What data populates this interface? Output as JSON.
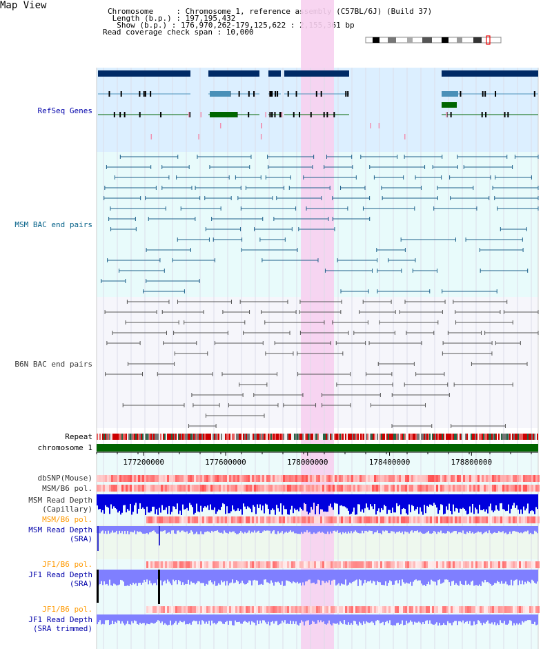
{
  "title": "Map View",
  "info": {
    "chromosome": "Chromosome     : Chromosome 1, reference assembly (C57BL/6J) (Build 37)",
    "length": " Length (b.p.) : 197,195,432",
    "show": "  Show (b.p.) : 176,970,262-179,125,622 : 2,155,361 bp",
    "span": "Read coverage check span : 10,000"
  },
  "tracks": {
    "refseq": "RefSeq Genes",
    "msm_bac": "MSM BAC end pairs",
    "b6n_bac": "B6N BAC end pairs",
    "repeat": "Repeat",
    "chromosome": "chromosome 1",
    "dbsnp": "dbSNP(Mouse)",
    "msm_b6_pol_1": "MSM/B6 pol.",
    "msm_depth_cap_1": "MSM Read Depth",
    "msm_depth_cap_2": "(Capillary)",
    "msm_b6_pol_2": "MSM/B6 pol.",
    "msm_depth_sra_1": "MSM Read Depth",
    "msm_depth_sra_2": "(SRA)",
    "jf1_b6_pol_1": "JF1/B6 pol.",
    "jf1_depth_sra_1": "JF1 Read Depth",
    "jf1_depth_sra_2": "(SRA)",
    "jf1_b6_pol_2": "JF1/B6 pol.",
    "jf1_depth_trim_1": "JF1 Read Depth",
    "jf1_depth_trim_2": "(SRA trimmed)"
  },
  "axis": {
    "ticks": [
      "177200000",
      "177600000",
      "178000000",
      "178400000",
      "178800000"
    ],
    "range": [
      176970262,
      179125622
    ]
  },
  "colors": {
    "gene_navy": "#002a66",
    "gene_teal": "#4a90b8",
    "gene_green": "#006600",
    "refseq_bg": "#dcefff",
    "msm_bg": "#e8fbfb",
    "highlight": "#f7d0f0",
    "chromosome_bar": "#006400",
    "depth_blue": "#0000dd",
    "depth_light": "#7f7fff"
  }
}
